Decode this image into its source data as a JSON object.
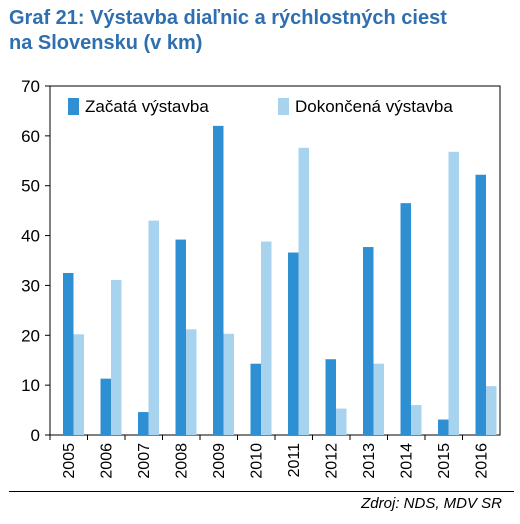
{
  "title_line1": "Graf 21: Výstavba diaľnic a rýchlostných ciest",
  "title_line2": "na Slovensku (v km)",
  "source": "Zdroj: NDS, MDV SR",
  "colors": {
    "started": "#2f8fd3",
    "completed": "#a8d3ef",
    "title": "#2f6fb0"
  },
  "chart_data": {
    "type": "bar",
    "categories": [
      "2005",
      "2006",
      "2007",
      "2008",
      "2009",
      "2010",
      "2011",
      "2012",
      "2013",
      "2014",
      "2015",
      "2016"
    ],
    "series": [
      {
        "name": "Začatá výstavba",
        "values": [
          32.5,
          11.3,
          4.6,
          39.2,
          62.0,
          14.3,
          36.6,
          15.2,
          37.7,
          46.5,
          3.1,
          52.2
        ]
      },
      {
        "name": "Dokončená výstavba",
        "values": [
          20.2,
          31.1,
          43.0,
          21.2,
          20.3,
          38.8,
          57.6,
          5.3,
          14.3,
          6.0,
          56.8,
          9.8
        ]
      }
    ],
    "ylim": [
      0,
      70
    ],
    "yticks": [
      "0",
      "10",
      "20",
      "30",
      "40",
      "50",
      "60",
      "70"
    ],
    "legend_position": "top-left",
    "grid": false
  }
}
